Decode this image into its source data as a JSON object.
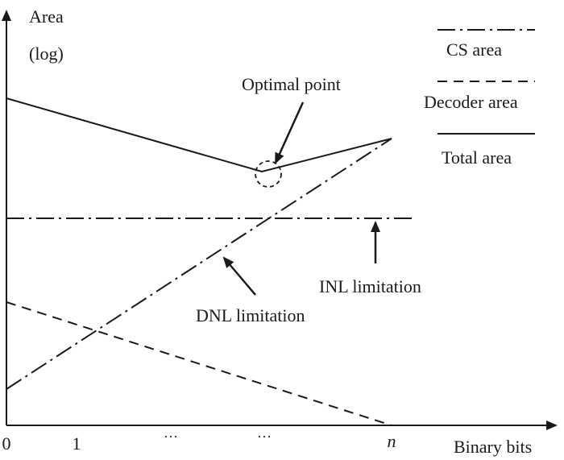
{
  "axes": {
    "y_label_line1": "Area",
    "y_label_line2": "(log)",
    "x_label": "Binary bits",
    "x_ticks": [
      "0",
      "1",
      "···",
      "···",
      "n"
    ]
  },
  "legend": {
    "cs_area": "CS area",
    "decoder_area": "Decoder area",
    "total_area": "Total area"
  },
  "annotations": {
    "optimal_point": "Optimal point",
    "inl_limitation": "INL limitation",
    "dnl_limitation": "DNL limitation"
  },
  "colors": {
    "ink": "#1a1a1a",
    "background": "#ffffff"
  }
}
